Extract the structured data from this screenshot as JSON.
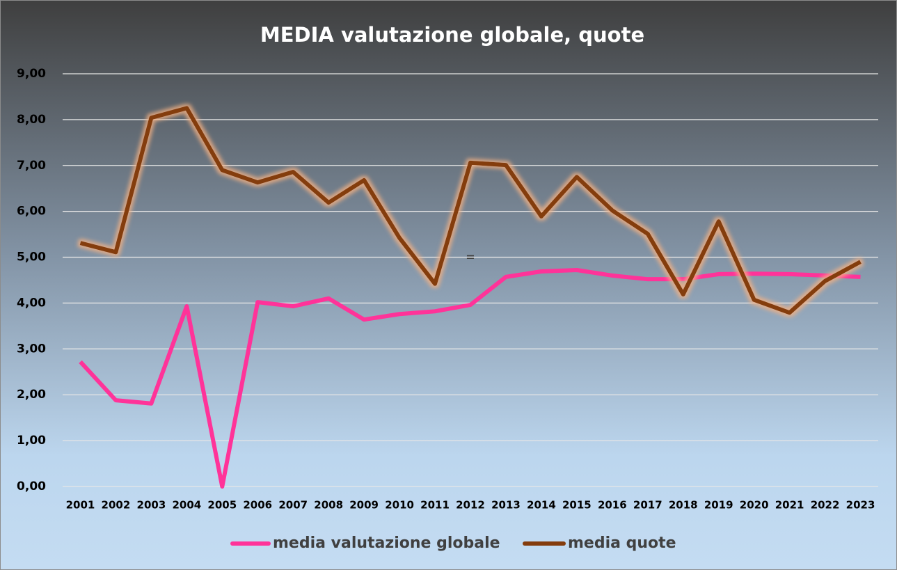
{
  "chart_data": {
    "type": "line",
    "title": "MEDIA valutazione globale, quote",
    "categories": [
      "2001",
      "2002",
      "2003",
      "2004",
      "2005",
      "2006",
      "2007",
      "2008",
      "2009",
      "2010",
      "2011",
      "2012",
      "2013",
      "2014",
      "2015",
      "2016",
      "2017",
      "2018",
      "2019",
      "2020",
      "2021",
      "2022",
      "2023"
    ],
    "series": [
      {
        "name": "media valutazione globale",
        "color": "#ff3399",
        "values": [
          2.72,
          1.88,
          1.81,
          3.93,
          0.0,
          4.02,
          3.93,
          4.1,
          3.64,
          3.76,
          3.82,
          3.96,
          4.57,
          4.69,
          4.72,
          4.6,
          4.52,
          4.52,
          4.63,
          4.64,
          4.63,
          4.6,
          4.57
        ]
      },
      {
        "name": "media quote",
        "color": "#843c0c",
        "values": [
          5.31,
          5.11,
          8.04,
          8.25,
          6.9,
          6.63,
          6.86,
          6.19,
          6.68,
          5.42,
          4.42,
          7.06,
          7.01,
          5.89,
          6.75,
          6.02,
          5.51,
          4.19,
          5.78,
          4.07,
          3.79,
          4.48,
          4.9
        ]
      }
    ],
    "annotation": "=",
    "ylim": [
      0,
      9
    ],
    "yticks": [
      {
        "value": 0,
        "label": "0,00"
      },
      {
        "value": 1,
        "label": "1,00"
      },
      {
        "value": 2,
        "label": "2,00"
      },
      {
        "value": 3,
        "label": "3,00"
      },
      {
        "value": 4,
        "label": "4,00"
      },
      {
        "value": 5,
        "label": "5,00"
      },
      {
        "value": 6,
        "label": "6,00"
      },
      {
        "value": 7,
        "label": "7,00"
      },
      {
        "value": 8,
        "label": "8,00"
      },
      {
        "value": 9,
        "label": "9,00"
      }
    ],
    "grid": true,
    "legend": "bottom"
  }
}
